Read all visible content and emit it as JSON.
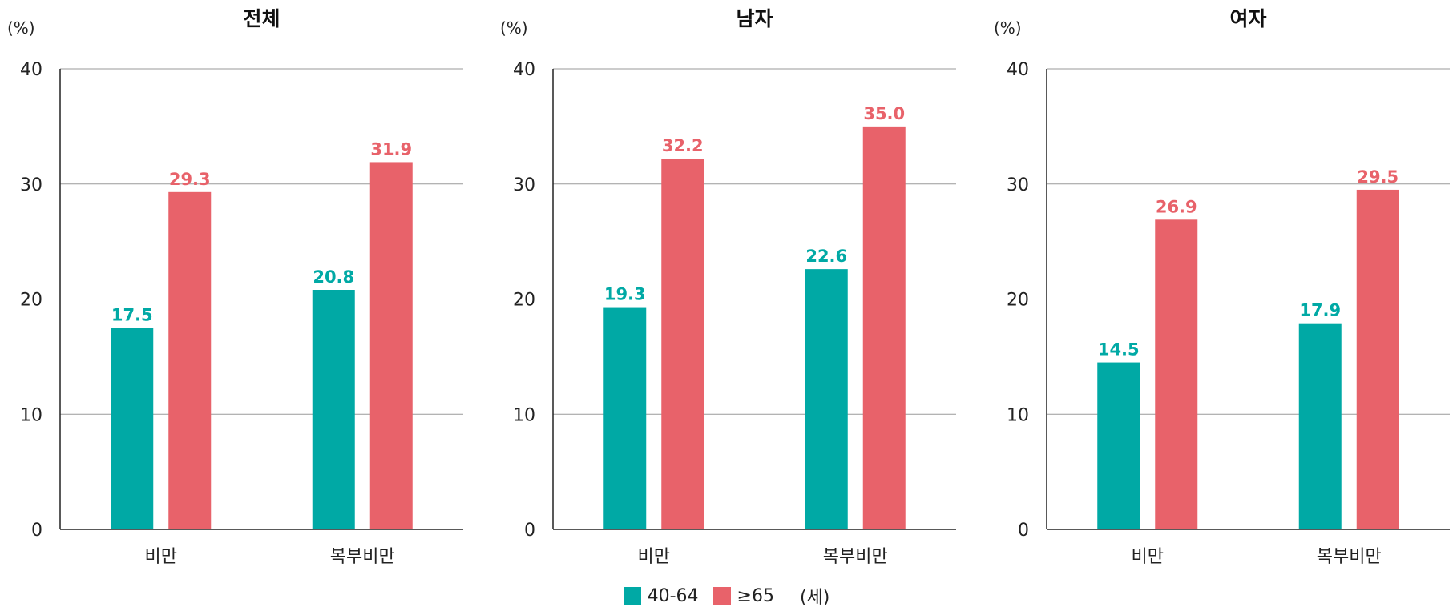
{
  "colors": {
    "series_40_64": "#00a9a5",
    "series_65": "#e8626a",
    "axis": "#222222",
    "grid": "#9a9a9a"
  },
  "legend": {
    "items": [
      "40-64",
      "≥65"
    ],
    "unit": "(세)"
  },
  "chart_data": [
    {
      "type": "bar",
      "title": "전체",
      "ylabel": "(%)",
      "ylim": [
        0,
        40
      ],
      "yticks": [
        0,
        10,
        20,
        30,
        40
      ],
      "categories": [
        "비만",
        "복부비만"
      ],
      "series": [
        {
          "name": "40-64",
          "values": [
            17.5,
            20.8
          ]
        },
        {
          "name": "≥65",
          "values": [
            29.3,
            31.9
          ]
        }
      ],
      "grid": true
    },
    {
      "type": "bar",
      "title": "남자",
      "ylabel": "(%)",
      "ylim": [
        0,
        40
      ],
      "yticks": [
        0,
        10,
        20,
        30,
        40
      ],
      "categories": [
        "비만",
        "복부비만"
      ],
      "series": [
        {
          "name": "40-64",
          "values": [
            19.3,
            22.6
          ]
        },
        {
          "name": "≥65",
          "values": [
            32.2,
            35.0
          ]
        }
      ],
      "grid": true
    },
    {
      "type": "bar",
      "title": "여자",
      "ylabel": "(%)",
      "ylim": [
        0,
        40
      ],
      "yticks": [
        0,
        10,
        20,
        30,
        40
      ],
      "categories": [
        "비만",
        "복부비만"
      ],
      "series": [
        {
          "name": "40-64",
          "values": [
            14.5,
            17.9
          ]
        },
        {
          "name": "≥65",
          "values": [
            26.9,
            29.5
          ]
        }
      ],
      "grid": true
    }
  ]
}
